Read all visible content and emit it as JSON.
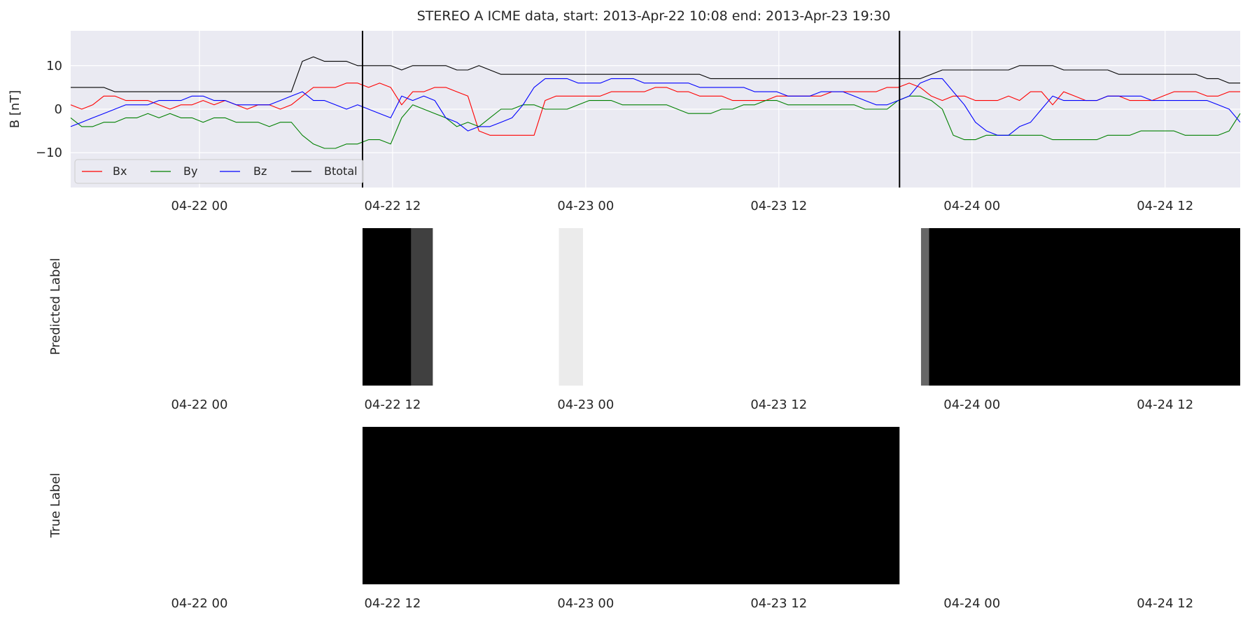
{
  "chart_data": [
    {
      "type": "line",
      "title": "STEREO A ICME data, start: 2013-Apr-22 10:08  end: 2013-Apr-23 19:30",
      "ylabel": "B [nT]",
      "xlabel": "",
      "x_start": "2013-04-21 16:00",
      "x_end": "2013-04-24 16:40",
      "ylim": [
        -18,
        18
      ],
      "yticks": [
        -10,
        0,
        10
      ],
      "xtick_dates": [
        "2013-04-22 00:00",
        "2013-04-22 12:00",
        "2013-04-23 00:00",
        "2013-04-23 12:00",
        "2013-04-24 00:00",
        "2013-04-24 12:00"
      ],
      "xtick_labels": [
        "04-22 00",
        "04-22 12",
        "04-23 00",
        "04-23 12",
        "04-24 00",
        "04-24 12"
      ],
      "grid": true,
      "legend_position": "lower-left",
      "event_markers": [
        "2013-04-22 10:08",
        "2013-04-23 19:30"
      ],
      "series": [
        {
          "name": "Bx",
          "color": "#ff0000",
          "values": [
            1,
            0,
            1,
            3,
            3,
            2,
            2,
            2,
            1,
            0,
            1,
            1,
            2,
            1,
            2,
            1,
            0,
            1,
            1,
            0,
            1,
            3,
            5,
            5,
            5,
            6,
            6,
            5,
            6,
            5,
            1,
            4,
            4,
            5,
            5,
            4,
            3,
            -5,
            -6,
            -6,
            -6,
            -6,
            -6,
            2,
            3,
            3,
            3,
            3,
            3,
            4,
            4,
            4,
            4,
            5,
            5,
            4,
            4,
            3,
            3,
            3,
            2,
            2,
            2,
            2,
            3,
            3,
            3,
            3,
            3,
            4,
            4,
            4,
            4,
            4,
            5,
            5,
            6,
            5,
            3,
            2,
            3,
            3,
            2,
            2,
            2,
            3,
            2,
            4,
            4,
            1,
            4,
            3,
            2,
            2,
            3,
            3,
            2,
            2,
            2,
            3,
            4,
            4,
            4,
            3,
            3,
            4,
            4
          ]
        },
        {
          "name": "By",
          "color": "#008000",
          "values": [
            -2,
            -4,
            -4,
            -3,
            -3,
            -2,
            -2,
            -1,
            -2,
            -1,
            -2,
            -2,
            -3,
            -2,
            -2,
            -3,
            -3,
            -3,
            -4,
            -3,
            -3,
            -6,
            -8,
            -9,
            -9,
            -8,
            -8,
            -7,
            -7,
            -8,
            -2,
            1,
            0,
            -1,
            -2,
            -4,
            -3,
            -4,
            -2,
            0,
            0,
            1,
            1,
            0,
            0,
            0,
            1,
            2,
            2,
            2,
            1,
            1,
            1,
            1,
            1,
            0,
            -1,
            -1,
            -1,
            0,
            0,
            1,
            1,
            2,
            2,
            1,
            1,
            1,
            1,
            1,
            1,
            1,
            0,
            0,
            0,
            2,
            3,
            3,
            2,
            0,
            -6,
            -7,
            -7,
            -6,
            -6,
            -6,
            -6,
            -6,
            -6,
            -7,
            -7,
            -7,
            -7,
            -7,
            -6,
            -6,
            -6,
            -5,
            -5,
            -5,
            -5,
            -6,
            -6,
            -6,
            -6,
            -5,
            -1
          ]
        },
        {
          "name": "Bz",
          "color": "#0000ff",
          "values": [
            -4,
            -3,
            -2,
            -1,
            0,
            1,
            1,
            1,
            2,
            2,
            2,
            3,
            3,
            2,
            2,
            1,
            1,
            1,
            1,
            2,
            3,
            4,
            2,
            2,
            1,
            0,
            1,
            0,
            -1,
            -2,
            3,
            2,
            3,
            2,
            -2,
            -3,
            -5,
            -4,
            -4,
            -3,
            -2,
            1,
            5,
            7,
            7,
            7,
            6,
            6,
            6,
            7,
            7,
            7,
            6,
            6,
            6,
            6,
            6,
            5,
            5,
            5,
            5,
            5,
            4,
            4,
            4,
            3,
            3,
            3,
            4,
            4,
            4,
            3,
            2,
            1,
            1,
            2,
            3,
            6,
            7,
            7,
            4,
            1,
            -3,
            -5,
            -6,
            -6,
            -4,
            -3,
            0,
            3,
            2,
            2,
            2,
            2,
            3,
            3,
            3,
            3,
            2,
            2,
            2,
            2,
            2,
            2,
            1,
            0,
            -3
          ]
        },
        {
          "name": "Btotal",
          "color": "#000000",
          "values": [
            5,
            5,
            5,
            5,
            4,
            4,
            4,
            4,
            4,
            4,
            4,
            4,
            4,
            4,
            4,
            4,
            4,
            4,
            4,
            4,
            4,
            11,
            12,
            11,
            11,
            11,
            10,
            10,
            10,
            10,
            9,
            10,
            10,
            10,
            10,
            9,
            9,
            10,
            9,
            8,
            8,
            8,
            8,
            8,
            8,
            8,
            8,
            8,
            8,
            8,
            8,
            8,
            8,
            8,
            8,
            8,
            8,
            8,
            7,
            7,
            7,
            7,
            7,
            7,
            7,
            7,
            7,
            7,
            7,
            7,
            7,
            7,
            7,
            7,
            7,
            7,
            7,
            7,
            8,
            9,
            9,
            9,
            9,
            9,
            9,
            9,
            10,
            10,
            10,
            10,
            9,
            9,
            9,
            9,
            9,
            8,
            8,
            8,
            8,
            8,
            8,
            8,
            8,
            7,
            7,
            6,
            6
          ]
        }
      ]
    },
    {
      "type": "heatmap",
      "ylabel": "Predicted Label",
      "colormap": "grayscale, white = 0, black = 1",
      "xtick_labels": [
        "04-22 00",
        "04-22 12",
        "04-23 00",
        "04-23 12",
        "04-24 00",
        "04-24 12"
      ],
      "segments": [
        {
          "start": "2013-04-22 10:08",
          "end": "2013-04-22 13:10",
          "value": 1.0
        },
        {
          "start": "2013-04-22 13:10",
          "end": "2013-04-22 14:30",
          "value": 0.75
        },
        {
          "start": "2013-04-22 22:20",
          "end": "2013-04-22 23:50",
          "value": 0.08
        },
        {
          "start": "2013-04-23 20:50",
          "end": "2013-04-23 21:20",
          "value": 0.6
        },
        {
          "start": "2013-04-23 21:20",
          "end": "2013-04-24 16:40",
          "value": 1.0
        }
      ]
    },
    {
      "type": "heatmap",
      "ylabel": "True Label",
      "colormap": "grayscale, white = 0, black = 1",
      "xtick_labels": [
        "04-22 00",
        "04-22 12",
        "04-23 00",
        "04-23 12",
        "04-24 00",
        "04-24 12"
      ],
      "segments": [
        {
          "start": "2013-04-22 10:08",
          "end": "2013-04-23 19:30",
          "value": 1.0
        }
      ]
    }
  ]
}
